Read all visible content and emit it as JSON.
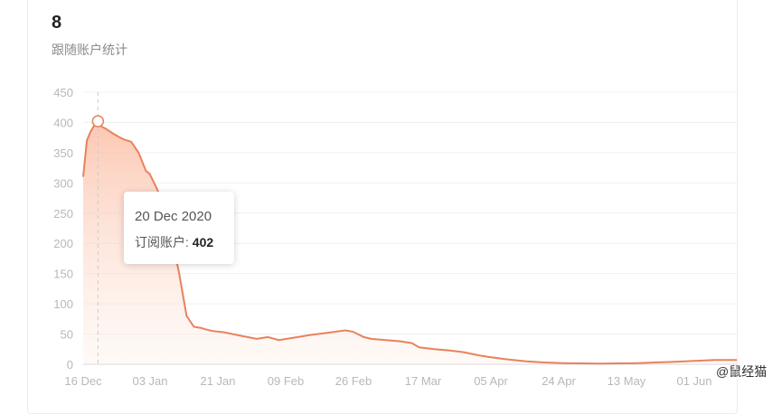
{
  "header": {
    "metric_value": "8",
    "metric_label": "跟随账户统计"
  },
  "tooltip": {
    "date": "20 Dec 2020",
    "label": "订阅账户:",
    "value": "402"
  },
  "watermark": "@鼠经猫",
  "colors": {
    "line": "#e8825c",
    "fill_top": "#fbc1a9",
    "grid": "#f0f0f0",
    "crosshair": "#cccccc"
  },
  "chart_data": {
    "type": "area",
    "x_tick_labels": [
      "16 Dec",
      "03 Jan",
      "21 Jan",
      "09 Feb",
      "26 Feb",
      "17 Mar",
      "05 Apr",
      "24 Apr",
      "13 May",
      "01 Jun"
    ],
    "y_ticks": [
      0,
      50,
      100,
      150,
      200,
      250,
      300,
      350,
      400,
      450
    ],
    "ylim": [
      0,
      450
    ],
    "xlim": [
      "2020-12-16",
      "2020-06-11"
    ],
    "grid": true,
    "highlight": {
      "x": "2020-12-20",
      "y": 402
    },
    "series": [
      {
        "x": [
          "2020-12-16",
          "2020-12-17",
          "2020-12-18",
          "2020-12-19",
          "2020-12-20",
          "2020-12-21",
          "2020-12-22",
          "2020-12-24",
          "2020-12-26",
          "2020-12-27",
          "2020-12-29",
          "2020-12-31",
          "2021-01-02",
          "2021-01-03",
          "2021-01-05",
          "2021-01-07",
          "2021-01-09",
          "2021-01-11",
          "2021-01-13",
          "2021-01-15",
          "2021-01-17",
          "2021-01-18",
          "2021-01-20",
          "2021-01-23",
          "2021-01-27",
          "2021-02-01",
          "2021-02-04",
          "2021-02-07",
          "2021-02-11",
          "2021-02-15",
          "2021-02-20",
          "2021-02-25",
          "2021-02-27",
          "2021-03-02",
          "2021-03-04",
          "2021-03-08",
          "2021-03-12",
          "2021-03-15",
          "2021-03-17",
          "2021-03-21",
          "2021-03-25",
          "2021-03-29",
          "2021-04-02",
          "2021-04-05",
          "2021-04-10",
          "2021-04-15",
          "2021-04-20",
          "2021-04-25",
          "2021-05-05",
          "2021-05-15",
          "2021-05-25",
          "2021-06-01",
          "2021-06-05",
          "2021-06-11"
        ],
        "y": [
          310,
          370,
          385,
          395,
          402,
          393,
          390,
          382,
          375,
          372,
          368,
          350,
          320,
          315,
          290,
          260,
          210,
          150,
          80,
          62,
          60,
          58,
          55,
          53,
          48,
          42,
          45,
          40,
          44,
          48,
          52,
          56,
          54,
          45,
          42,
          40,
          38,
          35,
          28,
          25,
          23,
          20,
          15,
          12,
          8,
          5,
          3,
          2,
          1,
          2,
          4,
          6,
          7,
          7
        ]
      }
    ]
  }
}
